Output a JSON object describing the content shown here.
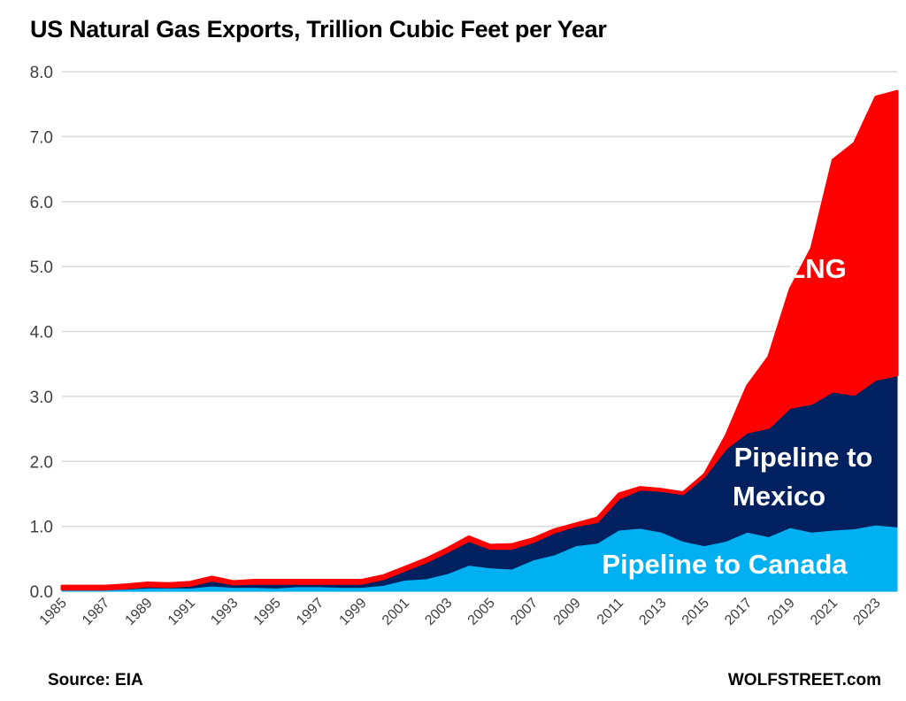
{
  "chart_data": {
    "type": "area",
    "stacked": true,
    "title": "US Natural Gas Exports, Trillion Cubic Feet per Year",
    "xlabel": "",
    "ylabel": "",
    "ylim": [
      0,
      8
    ],
    "yticks": [
      "0.0",
      "1.0",
      "2.0",
      "3.0",
      "4.0",
      "5.0",
      "6.0",
      "7.0",
      "8.0"
    ],
    "grid": true,
    "legend": "none (inline labels)",
    "x": [
      1985,
      1986,
      1987,
      1988,
      1989,
      1990,
      1991,
      1992,
      1993,
      1994,
      1995,
      1996,
      1997,
      1998,
      1999,
      2000,
      2001,
      2002,
      2003,
      2004,
      2005,
      2006,
      2007,
      2008,
      2009,
      2010,
      2011,
      2012,
      2013,
      2014,
      2015,
      2016,
      2017,
      2018,
      2019,
      2020,
      2021,
      2022,
      2023,
      2024
    ],
    "xticks": [
      "1985",
      "1987",
      "1989",
      "1991",
      "1993",
      "1995",
      "1997",
      "1999",
      "2001",
      "2003",
      "2005",
      "2007",
      "2009",
      "2011",
      "2013",
      "2015",
      "2017",
      "2019",
      "2021",
      "2023"
    ],
    "series": [
      {
        "name": "Pipeline to Canada",
        "color": "#00b0f0",
        "values": [
          0.02,
          0.02,
          0.02,
          0.03,
          0.05,
          0.05,
          0.05,
          0.08,
          0.06,
          0.06,
          0.05,
          0.07,
          0.07,
          0.06,
          0.06,
          0.09,
          0.17,
          0.19,
          0.27,
          0.4,
          0.36,
          0.34,
          0.48,
          0.56,
          0.7,
          0.74,
          0.94,
          0.97,
          0.91,
          0.77,
          0.7,
          0.77,
          0.91,
          0.84,
          0.98,
          0.91,
          0.94,
          0.96,
          1.02,
          0.99
        ]
      },
      {
        "name": "Pipeline to Mexico",
        "color": "#002060",
        "values": [
          0.01,
          0.01,
          0.01,
          0.02,
          0.03,
          0.02,
          0.04,
          0.09,
          0.05,
          0.06,
          0.07,
          0.05,
          0.05,
          0.06,
          0.06,
          0.1,
          0.15,
          0.26,
          0.34,
          0.38,
          0.3,
          0.32,
          0.28,
          0.35,
          0.31,
          0.33,
          0.49,
          0.6,
          0.64,
          0.73,
          1.07,
          1.43,
          1.54,
          1.68,
          1.85,
          1.98,
          2.14,
          2.07,
          2.24,
          2.34
        ]
      },
      {
        "name": "LNG",
        "color": "#ff0000",
        "values": [
          0.05,
          0.05,
          0.05,
          0.05,
          0.05,
          0.05,
          0.05,
          0.05,
          0.04,
          0.05,
          0.05,
          0.05,
          0.05,
          0.05,
          0.05,
          0.05,
          0.05,
          0.05,
          0.05,
          0.06,
          0.05,
          0.06,
          0.05,
          0.04,
          0.03,
          0.06,
          0.07,
          0.03,
          0.02,
          0.02,
          0.03,
          0.19,
          0.71,
          1.09,
          1.82,
          2.39,
          3.56,
          3.87,
          4.35,
          4.37
        ]
      }
    ]
  },
  "source": "Source: EIA",
  "brand": "WOLFSTREET.com",
  "labels": {
    "lng": "LNG",
    "mexico_1": "Pipeline to",
    "mexico_2": "Mexico",
    "canada": "Pipeline to Canada"
  }
}
